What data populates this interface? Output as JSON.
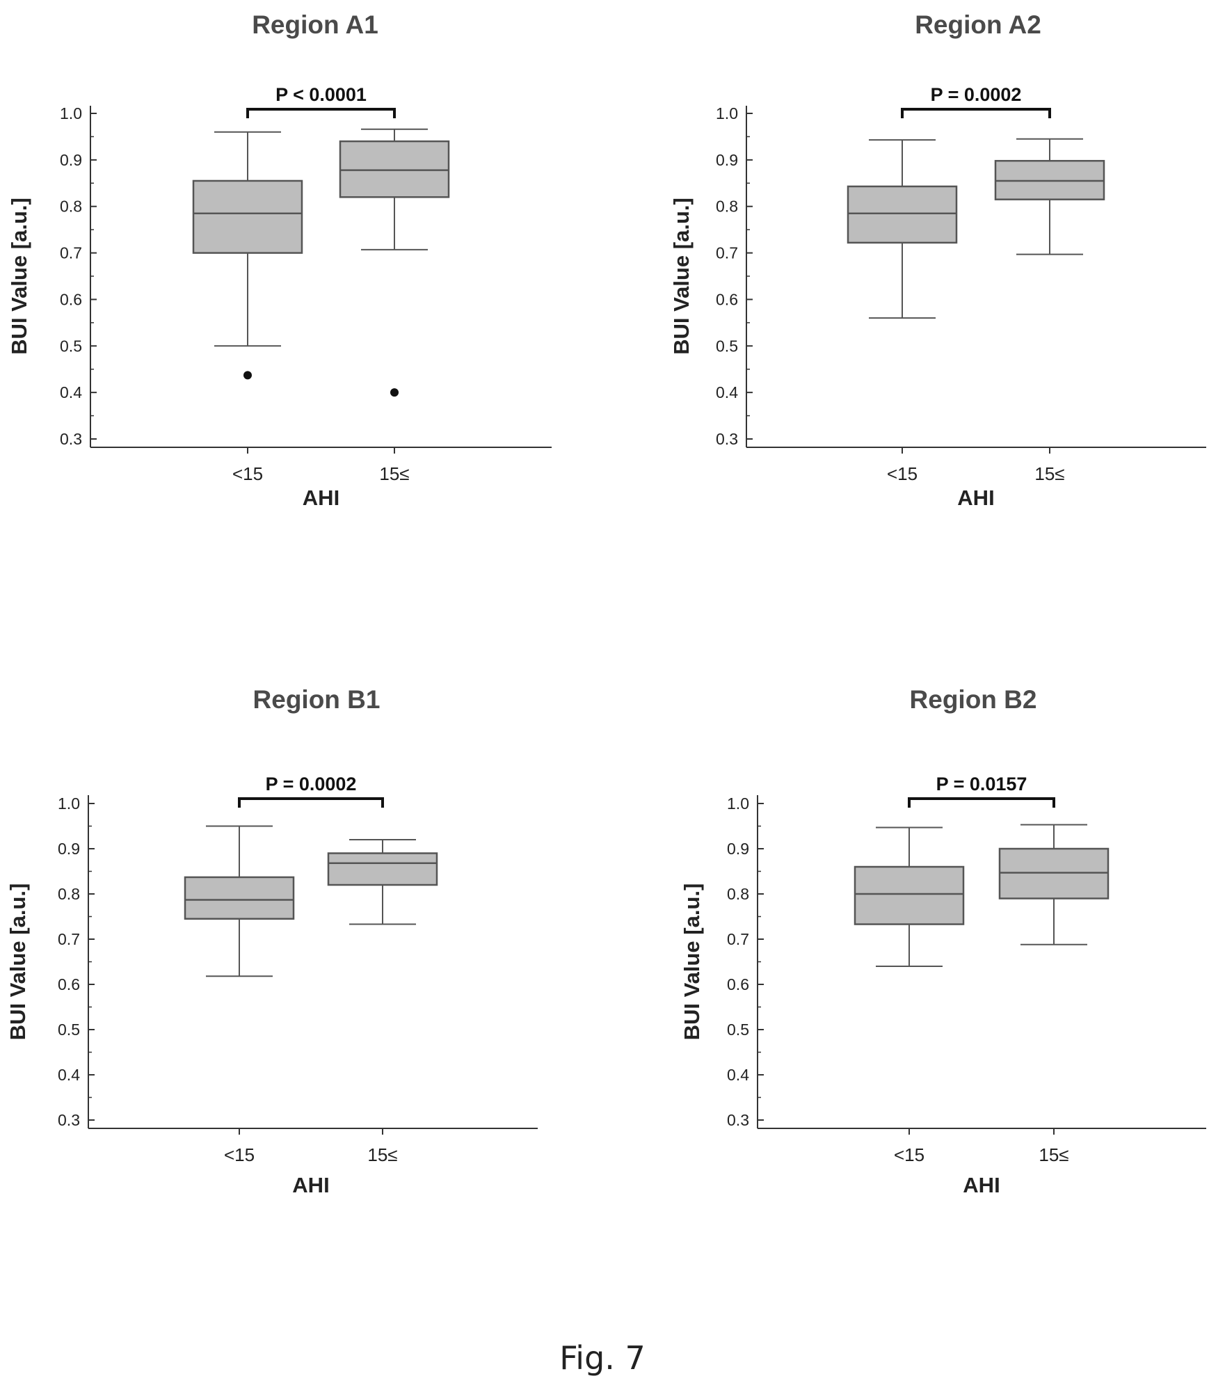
{
  "figure_caption": "Fig. 7",
  "colors": {
    "box_fill": "#bdbdbd",
    "box_stroke": "#555555",
    "axis": "#333333",
    "outlier": "#111111"
  },
  "chart_data": [
    {
      "type": "box",
      "title": "Region A1",
      "xlabel": "AHI",
      "ylabel": "BUI Value [a.u.]",
      "ylim": [
        0.3,
        1.0
      ],
      "yticks": [
        "0.3",
        "0.4",
        "0.5",
        "0.6",
        "0.7",
        "0.8",
        "0.9",
        "1.0"
      ],
      "categories": [
        "<15",
        "15≤"
      ],
      "p_value": "P < 0.0001",
      "boxes": [
        {
          "category": "<15",
          "whisker_low": 0.5,
          "q1": 0.7,
          "median": 0.785,
          "q3": 0.855,
          "whisker_high": 0.96,
          "outliers": [
            0.437
          ]
        },
        {
          "category": "15≤",
          "whisker_low": 0.707,
          "q1": 0.82,
          "median": 0.878,
          "q3": 0.94,
          "whisker_high": 0.966,
          "outliers": [
            0.4
          ]
        }
      ]
    },
    {
      "type": "box",
      "title": "Region  A2",
      "xlabel": "AHI",
      "ylabel": "BUI Value [a.u.]",
      "ylim": [
        0.3,
        1.0
      ],
      "yticks": [
        "0.3",
        "0.4",
        "0.5",
        "0.6",
        "0.7",
        "0.8",
        "0.9",
        "1.0"
      ],
      "categories": [
        "<15",
        "15≤"
      ],
      "p_value": "P = 0.0002",
      "boxes": [
        {
          "category": "<15",
          "whisker_low": 0.56,
          "q1": 0.722,
          "median": 0.785,
          "q3": 0.843,
          "whisker_high": 0.943,
          "outliers": []
        },
        {
          "category": "15≤",
          "whisker_low": 0.697,
          "q1": 0.815,
          "median": 0.855,
          "q3": 0.898,
          "whisker_high": 0.945,
          "outliers": []
        }
      ]
    },
    {
      "type": "box",
      "title": "Region B1",
      "xlabel": "AHI",
      "ylabel": "BUI Value [a.u.]",
      "ylim": [
        0.3,
        1.0
      ],
      "yticks": [
        "0.3",
        "0.4",
        "0.5",
        "0.6",
        "0.7",
        "0.8",
        "0.9",
        "1.0"
      ],
      "categories": [
        "<15",
        "15≤"
      ],
      "p_value": "P = 0.0002",
      "boxes": [
        {
          "category": "<15",
          "whisker_low": 0.618,
          "q1": 0.745,
          "median": 0.787,
          "q3": 0.837,
          "whisker_high": 0.95,
          "outliers": []
        },
        {
          "category": "15≤",
          "whisker_low": 0.733,
          "q1": 0.82,
          "median": 0.868,
          "q3": 0.89,
          "whisker_high": 0.92,
          "outliers": []
        }
      ]
    },
    {
      "type": "box",
      "title": "Region  B2",
      "xlabel": "AHI",
      "ylabel": "BUI Value [a.u.]",
      "ylim": [
        0.3,
        1.0
      ],
      "yticks": [
        "0.3",
        "0.4",
        "0.5",
        "0.6",
        "0.7",
        "0.8",
        "0.9",
        "1.0"
      ],
      "categories": [
        "<15",
        "15≤"
      ],
      "p_value": "P = 0.0157",
      "boxes": [
        {
          "category": "<15",
          "whisker_low": 0.64,
          "q1": 0.733,
          "median": 0.8,
          "q3": 0.86,
          "whisker_high": 0.947,
          "outliers": []
        },
        {
          "category": "15≤",
          "whisker_low": 0.688,
          "q1": 0.79,
          "median": 0.847,
          "q3": 0.9,
          "whisker_high": 0.953,
          "outliers": []
        }
      ]
    }
  ]
}
